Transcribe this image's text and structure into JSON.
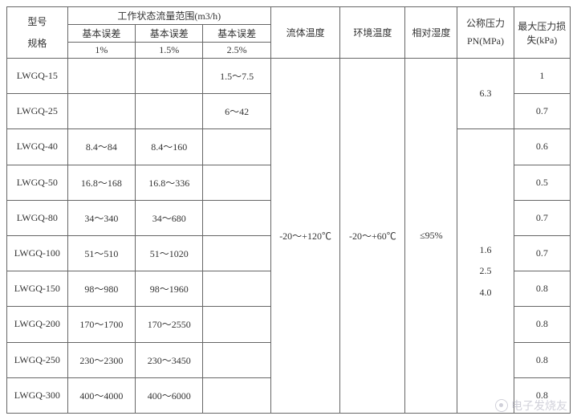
{
  "header": {
    "model_spec": "型号\n规格",
    "flow_range": "工作状态流量范围(m3/h)",
    "err1_label": "基本误差",
    "err1_val": "1%",
    "err2_label": "基本误差",
    "err2_val": "1.5%",
    "err3_label": "基本误差",
    "err3_val": "2.5%",
    "fluid_temp": "流体温度",
    "env_temp": "环境温度",
    "rel_humidity": "相对湿度",
    "pn": "公称压力\nPN(MPa)",
    "max_loss": "最大压力损失(kPa)"
  },
  "rows": [
    {
      "model": "LWGQ-15",
      "e1": "",
      "e2": "",
      "e3": "1.5～7.5",
      "loss": "1"
    },
    {
      "model": "LWGQ-25",
      "e1": "",
      "e2": "",
      "e3": "6～42",
      "loss": "0.7"
    },
    {
      "model": "LWGQ-40",
      "e1": "8.4～84",
      "e2": "8.4～160",
      "e3": "",
      "loss": "0.6"
    },
    {
      "model": "LWGQ-50",
      "e1": "16.8～168",
      "e2": "16.8～336",
      "e3": "",
      "loss": "0.5"
    },
    {
      "model": "LWGQ-80",
      "e1": "34～340",
      "e2": "34～680",
      "e3": "",
      "loss": "0.7"
    },
    {
      "model": "LWGQ-100",
      "e1": "51～510",
      "e2": "51～1020",
      "e3": "",
      "loss": "0.7"
    },
    {
      "model": "LWGQ-150",
      "e1": "98～980",
      "e2": "98～1960",
      "e3": "",
      "loss": "0.8"
    },
    {
      "model": "LWGQ-200",
      "e1": "170～1700",
      "e2": "170～2550",
      "e3": "",
      "loss": "0.8"
    },
    {
      "model": "LWGQ-250",
      "e1": "230～2300",
      "e2": "230～3450",
      "e3": "",
      "loss": "0.8"
    },
    {
      "model": "LWGQ-300",
      "e1": "400～4000",
      "e2": "400～6000",
      "e3": "",
      "loss": "0.8"
    }
  ],
  "merged": {
    "fluid_temp_val": "-20～+120℃",
    "env_temp_val": "-20～+60℃",
    "humidity_val": "≤95%",
    "pn_val_top": "6.3",
    "pn_val_bot_line1": "1.6",
    "pn_val_bot_line2": "2.5",
    "pn_val_bot_line3": "4.0"
  },
  "watermark": "电子发烧友",
  "style": {
    "border_color": "#666",
    "bg_color": "#ffffff"
  }
}
